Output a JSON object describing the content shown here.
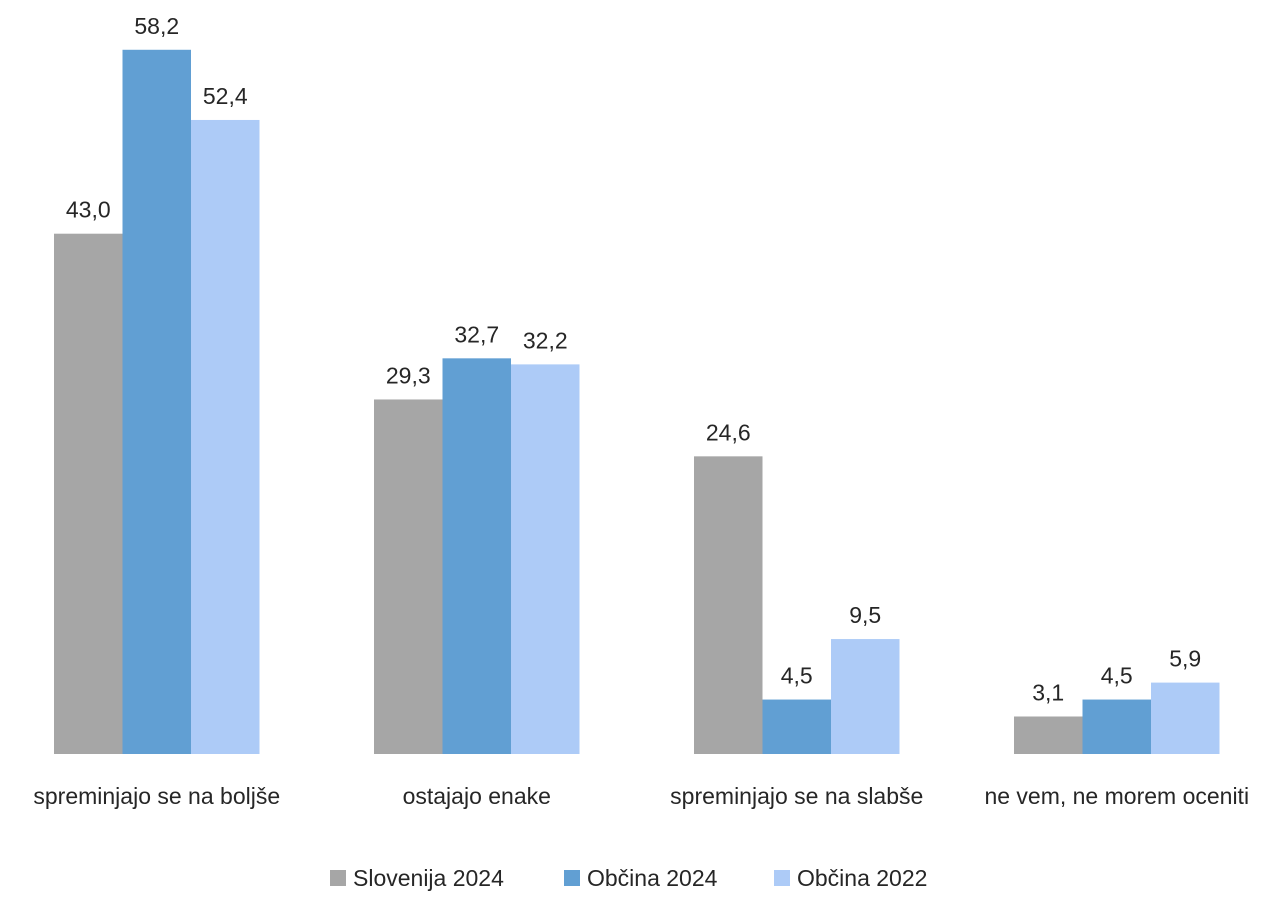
{
  "chart_data": {
    "type": "bar",
    "categories": [
      "spreminjajo se na boljše",
      "ostajajo enake",
      "spreminjajo se na slabše",
      "ne vem, ne morem oceniti"
    ],
    "series": [
      {
        "name": "Slovenija 2024",
        "color": "#a6a6a6",
        "values": [
          43.0,
          29.3,
          24.6,
          3.1
        ],
        "labels": [
          "43,0",
          "29,3",
          "24,6",
          "3,1"
        ]
      },
      {
        "name": "Občina 2024",
        "color": "#619fd3",
        "values": [
          58.2,
          32.7,
          4.5,
          4.5
        ],
        "labels": [
          "58,2",
          "32,7",
          "4,5",
          "4,5"
        ]
      },
      {
        "name": "Občina 2022",
        "color": "#adcbf7",
        "values": [
          52.4,
          32.2,
          9.5,
          5.9
        ],
        "labels": [
          "52,4",
          "32,2",
          "9,5",
          "5,9"
        ]
      }
    ],
    "title": "",
    "xlabel": "",
    "ylabel": "",
    "ylim": [
      0,
      60
    ],
    "grid": false,
    "legend_position": "bottom"
  }
}
